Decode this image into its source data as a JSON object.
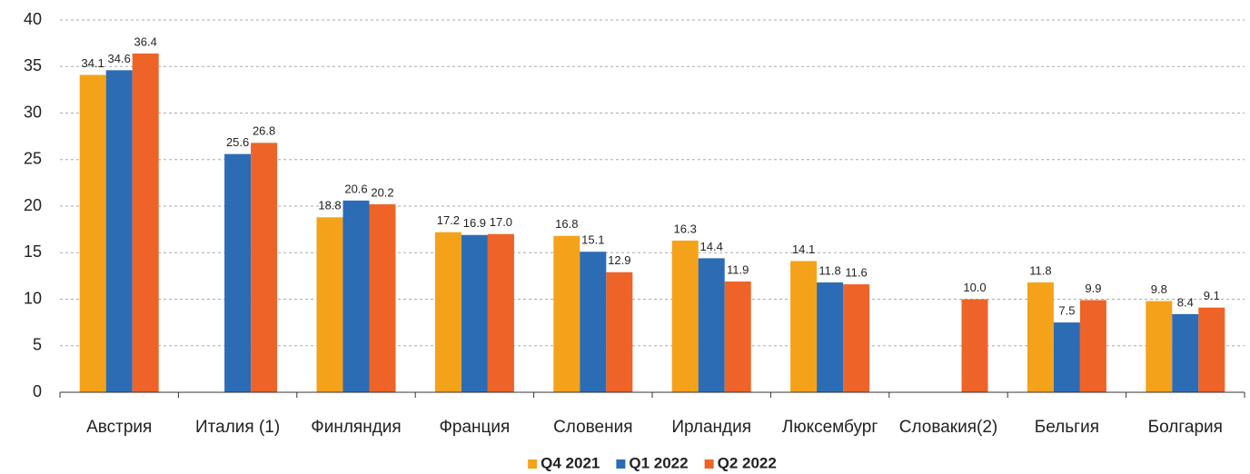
{
  "chart_data": {
    "type": "bar",
    "categories": [
      "Австрия",
      "Италия (1)",
      "Финляндия",
      "Франция",
      "Словения",
      "Ирландия",
      "Люксембург",
      "Словакия(2)",
      "Бельгия",
      "Болгария"
    ],
    "series": [
      {
        "name": "Q4 2021",
        "color": "#f5a21b",
        "values": [
          34.1,
          null,
          18.8,
          17.2,
          16.8,
          16.3,
          14.1,
          null,
          11.8,
          9.8
        ],
        "value_labels": [
          "34.1",
          null,
          "18.8",
          "17.2",
          "16.8",
          "16.3",
          "14.1",
          null,
          "11.8",
          "9.8"
        ]
      },
      {
        "name": "Q1 2022",
        "color": "#2b6cb5",
        "values": [
          34.6,
          25.6,
          20.6,
          16.9,
          15.1,
          14.4,
          11.8,
          null,
          7.5,
          8.4
        ],
        "value_labels": [
          "34.6",
          "25.6",
          "20.6",
          "16.9",
          "15.1",
          "14.4",
          "11.8",
          null,
          "7.5",
          "8.4"
        ]
      },
      {
        "name": "Q2 2022",
        "color": "#ee6328",
        "values": [
          36.4,
          26.8,
          20.2,
          17.0,
          12.9,
          11.9,
          11.6,
          10.0,
          9.9,
          9.1
        ],
        "value_labels": [
          "36.4",
          "26.8",
          "20.2",
          "17.0",
          "12.9",
          "11.9",
          "11.6",
          "10.0",
          "9.9",
          "9.1"
        ]
      }
    ],
    "ylim": [
      0,
      40
    ],
    "yticks": [
      0,
      5,
      10,
      15,
      20,
      25,
      30,
      35,
      40
    ],
    "grid": true,
    "legend": "bottom"
  }
}
